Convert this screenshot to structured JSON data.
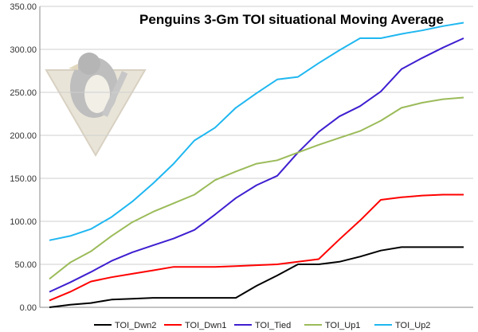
{
  "chart_data": {
    "type": "line",
    "title": "Penguins 3-Gm TOI situational Moving Average",
    "xlabel": "",
    "ylabel": "",
    "ylim": [
      0,
      350
    ],
    "yticks": [
      "0.00",
      "50.00",
      "100.00",
      "150.00",
      "200.00",
      "250.00",
      "300.00",
      "350.00"
    ],
    "grid": true,
    "legend_position": "bottom",
    "x": [
      1,
      2,
      3,
      4,
      5,
      6,
      7,
      8,
      9,
      10,
      11,
      12,
      13,
      14,
      15,
      16,
      17,
      18,
      19,
      20,
      21
    ],
    "series": [
      {
        "name": "TOI_Dwn2",
        "color": "#000000",
        "values": [
          0,
          3,
          5,
          9,
          10,
          11,
          11,
          11,
          11,
          11,
          25,
          37,
          50,
          50,
          53,
          59,
          66,
          70,
          70,
          70,
          70
        ]
      },
      {
        "name": "TOI_Dwn1",
        "color": "#ff0000",
        "values": [
          8,
          18,
          30,
          35,
          39,
          43,
          47,
          47,
          47,
          48,
          49,
          50,
          53,
          56,
          79,
          101,
          125,
          128,
          130,
          131,
          131
        ]
      },
      {
        "name": "TOI_Tied",
        "color": "#3f1fd0",
        "values": [
          18,
          29,
          41,
          54,
          64,
          72,
          80,
          90,
          108,
          127,
          142,
          153,
          180,
          204,
          222,
          234,
          251,
          277,
          290,
          302,
          313
        ]
      },
      {
        "name": "TOI_Up1",
        "color": "#9bbb59",
        "values": [
          33,
          52,
          65,
          83,
          99,
          111,
          121,
          131,
          148,
          158,
          167,
          171,
          180,
          189,
          197,
          205,
          217,
          232,
          238,
          242,
          244
        ]
      },
      {
        "name": "TOI_Up2",
        "color": "#1fb7f0",
        "values": [
          78,
          83,
          91,
          105,
          123,
          144,
          167,
          194,
          209,
          232,
          249,
          265,
          268,
          284,
          299,
          313,
          313,
          318,
          322,
          327,
          331
        ]
      }
    ]
  },
  "logo": {
    "name": "penguin-logo",
    "fill": "#c8bfae"
  }
}
